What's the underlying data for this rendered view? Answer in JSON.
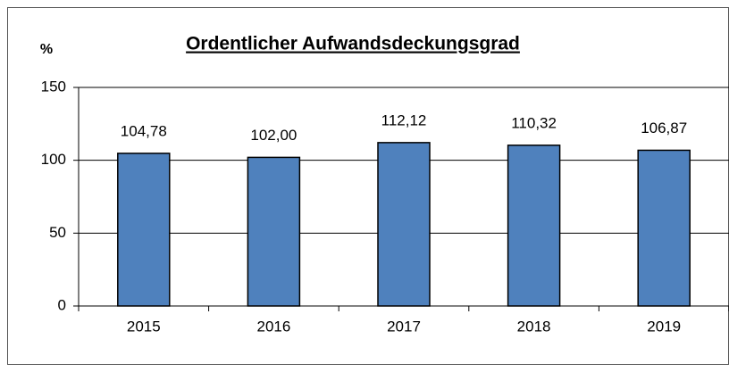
{
  "chart_data": {
    "type": "bar",
    "title": "Ordentlicher Aufwandsdeckungsgrad",
    "y_label": "%",
    "categories": [
      "2015",
      "2016",
      "2017",
      "2018",
      "2019"
    ],
    "values": [
      104.78,
      102.0,
      112.12,
      110.32,
      106.87
    ],
    "value_labels": [
      "104,78",
      "102,00",
      "112,12",
      "110,32",
      "106,87"
    ],
    "color": "#4f81bd",
    "ylim": [
      0,
      150
    ],
    "yticks": [
      0,
      50,
      100,
      150
    ],
    "grid": true
  }
}
